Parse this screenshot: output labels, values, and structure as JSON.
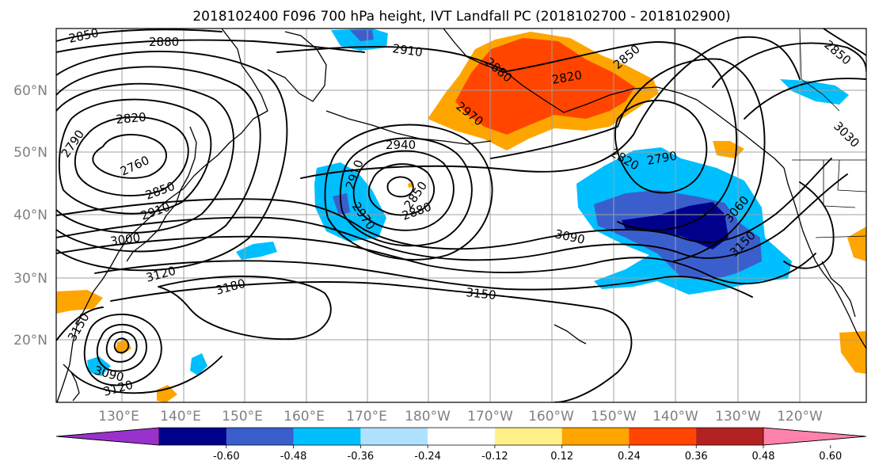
{
  "title": "2018102400 F096 700 hPa height, IVT Landfall PC (2018102700 - 2018102900)",
  "map": {
    "projection": "cylindrical",
    "lon_range": [
      120,
      247
    ],
    "lat_range": [
      10,
      70
    ],
    "grid": true
  },
  "lat_labels": [
    "60°N",
    "50°N",
    "40°N",
    "30°N",
    "20°N"
  ],
  "lon_labels": [
    "130°E",
    "140°E",
    "150°E",
    "160°E",
    "170°E",
    "180°W",
    "170°W",
    "160°W",
    "150°W",
    "140°W",
    "130°W",
    "120°W"
  ],
  "contour_labels": [
    "2850",
    "2880",
    "2910",
    "2850",
    "2820",
    "2790",
    "2760",
    "2880",
    "2820",
    "2850",
    "2970",
    "2940",
    "2910",
    "2970",
    "2850",
    "2880",
    "2820",
    "2790",
    "3060",
    "3030",
    "3090",
    "3150",
    "3150",
    "3180",
    "3120",
    "3000",
    "2910",
    "2850",
    "3150",
    "3090",
    "3120"
  ],
  "colorbar": {
    "levels": [
      "-0.60",
      "-0.48",
      "-0.36",
      "-0.24",
      "-0.12",
      "0.12",
      "0.24",
      "0.36",
      "0.48",
      "0.60"
    ],
    "colors": [
      "#9932cc",
      "#00008b",
      "#3a5fcd",
      "#00bfff",
      "#b0e2ff",
      "#ffffff",
      "#fff08a",
      "#ffa500",
      "#ff4500",
      "#b22222",
      "#ff82ab"
    ],
    "extend": "both"
  }
}
